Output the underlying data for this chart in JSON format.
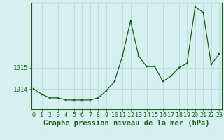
{
  "x": [
    0,
    1,
    2,
    3,
    4,
    5,
    6,
    7,
    8,
    9,
    10,
    11,
    12,
    13,
    14,
    15,
    16,
    17,
    18,
    19,
    20,
    21,
    22,
    23
  ],
  "y": [
    1014.0,
    1013.75,
    1013.58,
    1013.58,
    1013.48,
    1013.48,
    1013.48,
    1013.48,
    1013.58,
    1013.92,
    1014.35,
    1015.55,
    1017.2,
    1015.55,
    1015.05,
    1015.05,
    1014.35,
    1014.6,
    1015.0,
    1015.2,
    1017.85,
    1017.6,
    1015.15,
    1015.65
  ],
  "line_color": "#1a5e1a",
  "marker_color": "#1a5e1a",
  "bg_color": "#d6f0f0",
  "grid_color": "#b0d8d8",
  "axis_color": "#1a5e1a",
  "label_color": "#1a5e1a",
  "xlabel": "Graphe pression niveau de la mer (hPa)",
  "yticks": [
    1014,
    1015
  ],
  "ylim": [
    1013.05,
    1018.05
  ],
  "xlim": [
    -0.3,
    23.3
  ],
  "xtick_labels": [
    "0",
    "1",
    "2",
    "3",
    "4",
    "5",
    "6",
    "7",
    "8",
    "9",
    "10",
    "11",
    "12",
    "13",
    "14",
    "15",
    "16",
    "17",
    "18",
    "19",
    "20",
    "21",
    "22",
    "23"
  ],
  "xlabel_fontsize": 7.5,
  "tick_fontsize": 6,
  "ytick_fontsize": 6.5
}
